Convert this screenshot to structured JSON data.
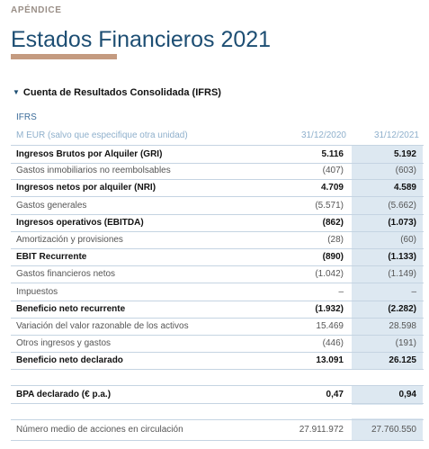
{
  "header": {
    "eyebrow": "APÉNDICE",
    "title": "Estados Financieros 2021",
    "accent_color": "#c49b80",
    "title_color": "#1d4e73"
  },
  "section": {
    "marker": "▼",
    "title": "Cuenta de Resultados Consolidada (IFRS)"
  },
  "table": {
    "standard_label": "IFRS",
    "unit_label": "M EUR (salvo que especifique otra unidad)",
    "col1_header": "31/12/2020",
    "col2_header": "31/12/2021",
    "highlight_color": "#dde8f1",
    "rows": [
      {
        "label": "Ingresos Brutos por Alquiler (GRI)",
        "v2020": "5.116",
        "v2021": "5.192",
        "bold": true
      },
      {
        "label": "Gastos inmobiliarios no reembolsables",
        "v2020": "(407)",
        "v2021": "(603)",
        "bold": false
      },
      {
        "label": "Ingresos netos por alquiler (NRI)",
        "v2020": "4.709",
        "v2021": "4.589",
        "bold": true
      },
      {
        "label": "Gastos generales",
        "v2020": "(5.571)",
        "v2021": "(5.662)",
        "bold": false
      },
      {
        "label": "Ingresos operativos (EBITDA)",
        "v2020": "(862)",
        "v2021": "(1.073)",
        "bold": true
      },
      {
        "label": "Amortización y provisiones",
        "v2020": "(28)",
        "v2021": "(60)",
        "bold": false
      },
      {
        "label": "EBIT Recurrente",
        "v2020": "(890)",
        "v2021": "(1.133)",
        "bold": true
      },
      {
        "label": "Gastos financieros netos",
        "v2020": "(1.042)",
        "v2021": "(1.149)",
        "bold": false
      },
      {
        "label": "Impuestos",
        "v2020": "–",
        "v2021": "–",
        "bold": false
      },
      {
        "label": "Beneficio neto recurrente",
        "v2020": "(1.932)",
        "v2021": "(2.282)",
        "bold": true
      },
      {
        "label": "Variación del valor razonable de los activos",
        "v2020": "15.469",
        "v2021": "28.598",
        "bold": false
      },
      {
        "label": "Otros ingresos y gastos",
        "v2020": "(446)",
        "v2021": "(191)",
        "bold": false
      },
      {
        "label": "Beneficio neto declarado",
        "v2020": "13.091",
        "v2021": "26.125",
        "bold": true
      }
    ],
    "bpa": {
      "label": "BPA declarado (€ p.a.)",
      "v2020": "0,47",
      "v2021": "0,94"
    },
    "shares": {
      "label": "Número medio de acciones en circulación",
      "v2020": "27.911.972",
      "v2021": "27.760.550"
    }
  }
}
